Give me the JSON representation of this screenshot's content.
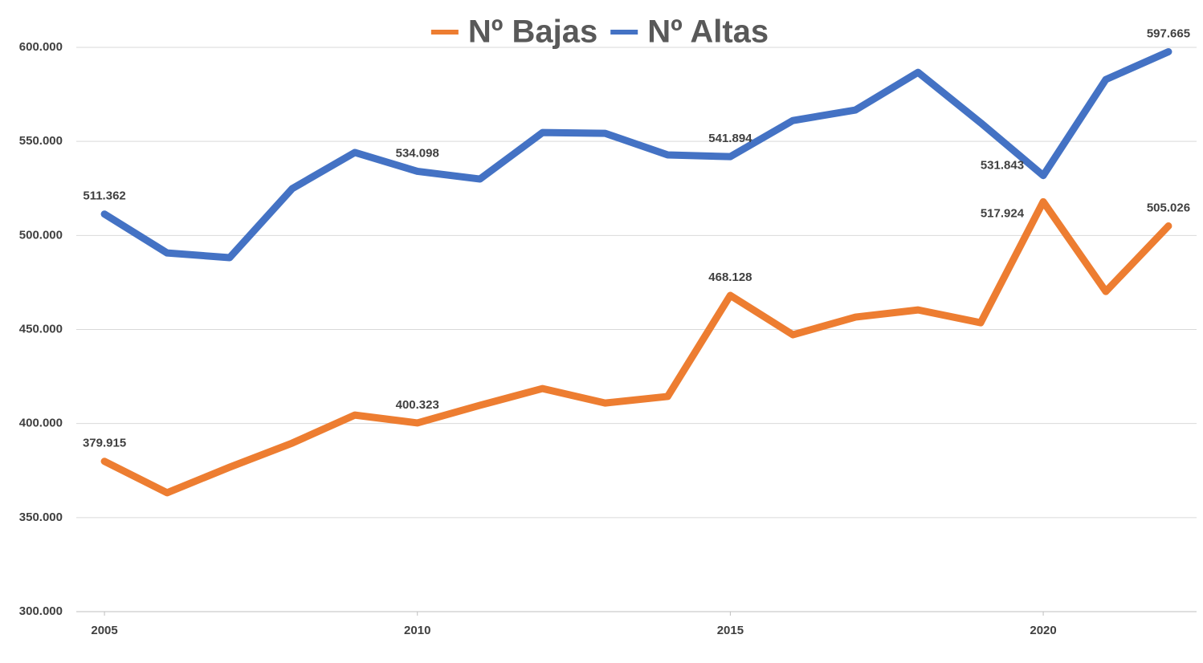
{
  "chart_data": {
    "type": "line",
    "x": [
      2005,
      2006,
      2007,
      2008,
      2009,
      2010,
      2011,
      2012,
      2013,
      2014,
      2015,
      2016,
      2017,
      2018,
      2019,
      2020,
      2021,
      2022
    ],
    "xlim": [
      2004.55,
      2022.45
    ],
    "xticks": [
      2005,
      2010,
      2015,
      2020
    ],
    "ylim": [
      300000,
      600000
    ],
    "yticks": [
      {
        "value": 300000,
        "label": "300.000"
      },
      {
        "value": 350000,
        "label": "350.000"
      },
      {
        "value": 400000,
        "label": "400.000"
      },
      {
        "value": 450000,
        "label": "450.000"
      },
      {
        "value": 500000,
        "label": "500.000"
      },
      {
        "value": 550000,
        "label": "550.000"
      },
      {
        "value": 600000,
        "label": "600.000"
      }
    ],
    "grid": true,
    "legend": "top",
    "series": [
      {
        "name": "Nº Bajas",
        "color": "#ED7D31",
        "values": [
          379915,
          363200,
          376800,
          389600,
          404500,
          400323,
          409700,
          418600,
          410900,
          414400,
          468128,
          447200,
          456600,
          460400,
          453600,
          517924,
          470200,
          505026
        ],
        "value_labels": [
          "379.915",
          null,
          null,
          null,
          null,
          "400.323",
          null,
          null,
          null,
          null,
          "468.128",
          null,
          null,
          null,
          null,
          "517.924",
          null,
          "505.026"
        ]
      },
      {
        "name": "Nº Altas",
        "color": "#4472C4",
        "values": [
          511362,
          490700,
          488200,
          524900,
          544100,
          534098,
          530000,
          554700,
          554300,
          542800,
          541894,
          561100,
          566700,
          586700,
          559900,
          531843,
          582900,
          597665
        ],
        "value_labels": [
          "511.362",
          null,
          null,
          null,
          null,
          "534.098",
          null,
          null,
          null,
          null,
          "541.894",
          null,
          null,
          null,
          null,
          "531.843",
          null,
          "597.665"
        ]
      }
    ]
  }
}
